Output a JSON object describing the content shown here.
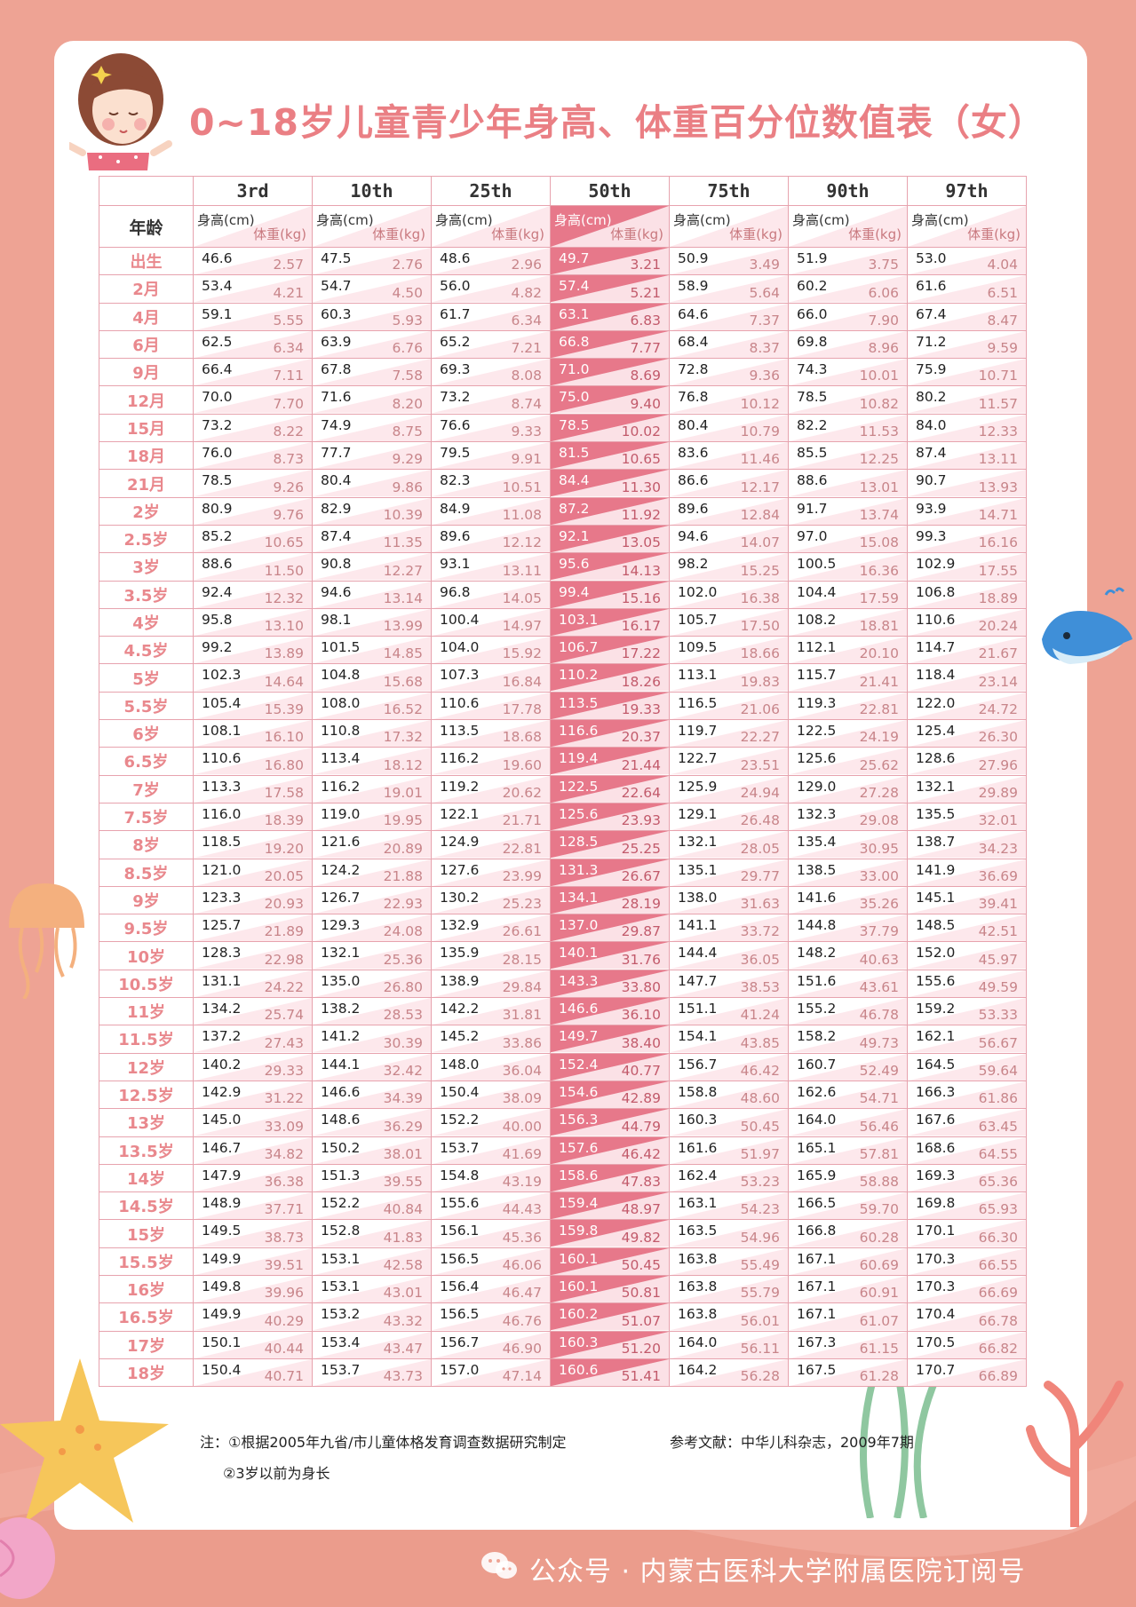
{
  "title": "0~18岁儿童青少年身高、体重百分位数值表（女）",
  "header": {
    "age_label": "年龄",
    "height_unit": "身高(cm)",
    "weight_unit": "体重(kg)",
    "percentiles": [
      "3rd",
      "10th",
      "25th",
      "50th",
      "75th",
      "90th",
      "97th"
    ],
    "highlight_index": 3
  },
  "rows": [
    {
      "age": "出生",
      "h": [
        "46.6",
        "47.5",
        "48.6",
        "49.7",
        "50.9",
        "51.9",
        "53.0"
      ],
      "w": [
        "2.57",
        "2.76",
        "2.96",
        "3.21",
        "3.49",
        "3.75",
        "4.04"
      ]
    },
    {
      "age": "2月",
      "h": [
        "53.4",
        "54.7",
        "56.0",
        "57.4",
        "58.9",
        "60.2",
        "61.6"
      ],
      "w": [
        "4.21",
        "4.50",
        "4.82",
        "5.21",
        "5.64",
        "6.06",
        "6.51"
      ]
    },
    {
      "age": "4月",
      "h": [
        "59.1",
        "60.3",
        "61.7",
        "63.1",
        "64.6",
        "66.0",
        "67.4"
      ],
      "w": [
        "5.55",
        "5.93",
        "6.34",
        "6.83",
        "7.37",
        "7.90",
        "8.47"
      ]
    },
    {
      "age": "6月",
      "h": [
        "62.5",
        "63.9",
        "65.2",
        "66.8",
        "68.4",
        "69.8",
        "71.2"
      ],
      "w": [
        "6.34",
        "6.76",
        "7.21",
        "7.77",
        "8.37",
        "8.96",
        "9.59"
      ]
    },
    {
      "age": "9月",
      "h": [
        "66.4",
        "67.8",
        "69.3",
        "71.0",
        "72.8",
        "74.3",
        "75.9"
      ],
      "w": [
        "7.11",
        "7.58",
        "8.08",
        "8.69",
        "9.36",
        "10.01",
        "10.71"
      ]
    },
    {
      "age": "12月",
      "h": [
        "70.0",
        "71.6",
        "73.2",
        "75.0",
        "76.8",
        "78.5",
        "80.2"
      ],
      "w": [
        "7.70",
        "8.20",
        "8.74",
        "9.40",
        "10.12",
        "10.82",
        "11.57"
      ]
    },
    {
      "age": "15月",
      "h": [
        "73.2",
        "74.9",
        "76.6",
        "78.5",
        "80.4",
        "82.2",
        "84.0"
      ],
      "w": [
        "8.22",
        "8.75",
        "9.33",
        "10.02",
        "10.79",
        "11.53",
        "12.33"
      ]
    },
    {
      "age": "18月",
      "h": [
        "76.0",
        "77.7",
        "79.5",
        "81.5",
        "83.6",
        "85.5",
        "87.4"
      ],
      "w": [
        "8.73",
        "9.29",
        "9.91",
        "10.65",
        "11.46",
        "12.25",
        "13.11"
      ]
    },
    {
      "age": "21月",
      "h": [
        "78.5",
        "80.4",
        "82.3",
        "84.4",
        "86.6",
        "88.6",
        "90.7"
      ],
      "w": [
        "9.26",
        "9.86",
        "10.51",
        "11.30",
        "12.17",
        "13.01",
        "13.93"
      ]
    },
    {
      "age": "2岁",
      "h": [
        "80.9",
        "82.9",
        "84.9",
        "87.2",
        "89.6",
        "91.7",
        "93.9"
      ],
      "w": [
        "9.76",
        "10.39",
        "11.08",
        "11.92",
        "12.84",
        "13.74",
        "14.71"
      ]
    },
    {
      "age": "2.5岁",
      "h": [
        "85.2",
        "87.4",
        "89.6",
        "92.1",
        "94.6",
        "97.0",
        "99.3"
      ],
      "w": [
        "10.65",
        "11.35",
        "12.12",
        "13.05",
        "14.07",
        "15.08",
        "16.16"
      ]
    },
    {
      "age": "3岁",
      "h": [
        "88.6",
        "90.8",
        "93.1",
        "95.6",
        "98.2",
        "100.5",
        "102.9"
      ],
      "w": [
        "11.50",
        "12.27",
        "13.11",
        "14.13",
        "15.25",
        "16.36",
        "17.55"
      ]
    },
    {
      "age": "3.5岁",
      "h": [
        "92.4",
        "94.6",
        "96.8",
        "99.4",
        "102.0",
        "104.4",
        "106.8"
      ],
      "w": [
        "12.32",
        "13.14",
        "14.05",
        "15.16",
        "16.38",
        "17.59",
        "18.89"
      ]
    },
    {
      "age": "4岁",
      "h": [
        "95.8",
        "98.1",
        "100.4",
        "103.1",
        "105.7",
        "108.2",
        "110.6"
      ],
      "w": [
        "13.10",
        "13.99",
        "14.97",
        "16.17",
        "17.50",
        "18.81",
        "20.24"
      ]
    },
    {
      "age": "4.5岁",
      "h": [
        "99.2",
        "101.5",
        "104.0",
        "106.7",
        "109.5",
        "112.1",
        "114.7"
      ],
      "w": [
        "13.89",
        "14.85",
        "15.92",
        "17.22",
        "18.66",
        "20.10",
        "21.67"
      ]
    },
    {
      "age": "5岁",
      "h": [
        "102.3",
        "104.8",
        "107.3",
        "110.2",
        "113.1",
        "115.7",
        "118.4"
      ],
      "w": [
        "14.64",
        "15.68",
        "16.84",
        "18.26",
        "19.83",
        "21.41",
        "23.14"
      ]
    },
    {
      "age": "5.5岁",
      "h": [
        "105.4",
        "108.0",
        "110.6",
        "113.5",
        "116.5",
        "119.3",
        "122.0"
      ],
      "w": [
        "15.39",
        "16.52",
        "17.78",
        "19.33",
        "21.06",
        "22.81",
        "24.72"
      ]
    },
    {
      "age": "6岁",
      "h": [
        "108.1",
        "110.8",
        "113.5",
        "116.6",
        "119.7",
        "122.5",
        "125.4"
      ],
      "w": [
        "16.10",
        "17.32",
        "18.68",
        "20.37",
        "22.27",
        "24.19",
        "26.30"
      ]
    },
    {
      "age": "6.5岁",
      "h": [
        "110.6",
        "113.4",
        "116.2",
        "119.4",
        "122.7",
        "125.6",
        "128.6"
      ],
      "w": [
        "16.80",
        "18.12",
        "19.60",
        "21.44",
        "23.51",
        "25.62",
        "27.96"
      ]
    },
    {
      "age": "7岁",
      "h": [
        "113.3",
        "116.2",
        "119.2",
        "122.5",
        "125.9",
        "129.0",
        "132.1"
      ],
      "w": [
        "17.58",
        "19.01",
        "20.62",
        "22.64",
        "24.94",
        "27.28",
        "29.89"
      ]
    },
    {
      "age": "7.5岁",
      "h": [
        "116.0",
        "119.0",
        "122.1",
        "125.6",
        "129.1",
        "132.3",
        "135.5"
      ],
      "w": [
        "18.39",
        "19.95",
        "21.71",
        "23.93",
        "26.48",
        "29.08",
        "32.01"
      ]
    },
    {
      "age": "8岁",
      "h": [
        "118.5",
        "121.6",
        "124.9",
        "128.5",
        "132.1",
        "135.4",
        "138.7"
      ],
      "w": [
        "19.20",
        "20.89",
        "22.81",
        "25.25",
        "28.05",
        "30.95",
        "34.23"
      ]
    },
    {
      "age": "8.5岁",
      "h": [
        "121.0",
        "124.2",
        "127.6",
        "131.3",
        "135.1",
        "138.5",
        "141.9"
      ],
      "w": [
        "20.05",
        "21.88",
        "23.99",
        "26.67",
        "29.77",
        "33.00",
        "36.69"
      ]
    },
    {
      "age": "9岁",
      "h": [
        "123.3",
        "126.7",
        "130.2",
        "134.1",
        "138.0",
        "141.6",
        "145.1"
      ],
      "w": [
        "20.93",
        "22.93",
        "25.23",
        "28.19",
        "31.63",
        "35.26",
        "39.41"
      ]
    },
    {
      "age": "9.5岁",
      "h": [
        "125.7",
        "129.3",
        "132.9",
        "137.0",
        "141.1",
        "144.8",
        "148.5"
      ],
      "w": [
        "21.89",
        "24.08",
        "26.61",
        "29.87",
        "33.72",
        "37.79",
        "42.51"
      ]
    },
    {
      "age": "10岁",
      "h": [
        "128.3",
        "132.1",
        "135.9",
        "140.1",
        "144.4",
        "148.2",
        "152.0"
      ],
      "w": [
        "22.98",
        "25.36",
        "28.15",
        "31.76",
        "36.05",
        "40.63",
        "45.97"
      ]
    },
    {
      "age": "10.5岁",
      "h": [
        "131.1",
        "135.0",
        "138.9",
        "143.3",
        "147.7",
        "151.6",
        "155.6"
      ],
      "w": [
        "24.22",
        "26.80",
        "29.84",
        "33.80",
        "38.53",
        "43.61",
        "49.59"
      ]
    },
    {
      "age": "11岁",
      "h": [
        "134.2",
        "138.2",
        "142.2",
        "146.6",
        "151.1",
        "155.2",
        "159.2"
      ],
      "w": [
        "25.74",
        "28.53",
        "31.81",
        "36.10",
        "41.24",
        "46.78",
        "53.33"
      ]
    },
    {
      "age": "11.5岁",
      "h": [
        "137.2",
        "141.2",
        "145.2",
        "149.7",
        "154.1",
        "158.2",
        "162.1"
      ],
      "w": [
        "27.43",
        "30.39",
        "33.86",
        "38.40",
        "43.85",
        "49.73",
        "56.67"
      ]
    },
    {
      "age": "12岁",
      "h": [
        "140.2",
        "144.1",
        "148.0",
        "152.4",
        "156.7",
        "160.7",
        "164.5"
      ],
      "w": [
        "29.33",
        "32.42",
        "36.04",
        "40.77",
        "46.42",
        "52.49",
        "59.64"
      ]
    },
    {
      "age": "12.5岁",
      "h": [
        "142.9",
        "146.6",
        "150.4",
        "154.6",
        "158.8",
        "162.6",
        "166.3"
      ],
      "w": [
        "31.22",
        "34.39",
        "38.09",
        "42.89",
        "48.60",
        "54.71",
        "61.86"
      ]
    },
    {
      "age": "13岁",
      "h": [
        "145.0",
        "148.6",
        "152.2",
        "156.3",
        "160.3",
        "164.0",
        "167.6"
      ],
      "w": [
        "33.09",
        "36.29",
        "40.00",
        "44.79",
        "50.45",
        "56.46",
        "63.45"
      ]
    },
    {
      "age": "13.5岁",
      "h": [
        "146.7",
        "150.2",
        "153.7",
        "157.6",
        "161.6",
        "165.1",
        "168.6"
      ],
      "w": [
        "34.82",
        "38.01",
        "41.69",
        "46.42",
        "51.97",
        "57.81",
        "64.55"
      ]
    },
    {
      "age": "14岁",
      "h": [
        "147.9",
        "151.3",
        "154.8",
        "158.6",
        "162.4",
        "165.9",
        "169.3"
      ],
      "w": [
        "36.38",
        "39.55",
        "43.19",
        "47.83",
        "53.23",
        "58.88",
        "65.36"
      ]
    },
    {
      "age": "14.5岁",
      "h": [
        "148.9",
        "152.2",
        "155.6",
        "159.4",
        "163.1",
        "166.5",
        "169.8"
      ],
      "w": [
        "37.71",
        "40.84",
        "44.43",
        "48.97",
        "54.23",
        "59.70",
        "65.93"
      ]
    },
    {
      "age": "15岁",
      "h": [
        "149.5",
        "152.8",
        "156.1",
        "159.8",
        "163.5",
        "166.8",
        "170.1"
      ],
      "w": [
        "38.73",
        "41.83",
        "45.36",
        "49.82",
        "54.96",
        "60.28",
        "66.30"
      ]
    },
    {
      "age": "15.5岁",
      "h": [
        "149.9",
        "153.1",
        "156.5",
        "160.1",
        "163.8",
        "167.1",
        "170.3"
      ],
      "w": [
        "39.51",
        "42.58",
        "46.06",
        "50.45",
        "55.49",
        "60.69",
        "66.55"
      ]
    },
    {
      "age": "16岁",
      "h": [
        "149.8",
        "153.1",
        "156.4",
        "160.1",
        "163.8",
        "167.1",
        "170.3"
      ],
      "w": [
        "39.96",
        "43.01",
        "46.47",
        "50.81",
        "55.79",
        "60.91",
        "66.69"
      ]
    },
    {
      "age": "16.5岁",
      "h": [
        "149.9",
        "153.2",
        "156.5",
        "160.2",
        "163.8",
        "167.1",
        "170.4"
      ],
      "w": [
        "40.29",
        "43.32",
        "46.76",
        "51.07",
        "56.01",
        "61.07",
        "66.78"
      ]
    },
    {
      "age": "17岁",
      "h": [
        "150.1",
        "153.4",
        "156.7",
        "160.3",
        "164.0",
        "167.3",
        "170.5"
      ],
      "w": [
        "40.44",
        "43.47",
        "46.90",
        "51.20",
        "56.11",
        "61.15",
        "66.82"
      ]
    },
    {
      "age": "18岁",
      "h": [
        "150.4",
        "153.7",
        "157.0",
        "160.6",
        "164.2",
        "167.5",
        "170.7"
      ],
      "w": [
        "40.71",
        "43.73",
        "47.14",
        "51.41",
        "56.28",
        "61.28",
        "66.89"
      ]
    }
  ],
  "notes": {
    "note1": "注：①根据2005年九省/市儿童体格发育调查数据研究制定",
    "note2": "②3岁以前为身长",
    "reference": "参考文献：中华儿科杂志，2009年7期"
  },
  "footer": "公众号 · 内蒙古医科大学附属医院订阅号",
  "colors": {
    "background": "#eea394",
    "title": "#ea7f84",
    "highlight": "#e7788a",
    "grid": "#e7a3ae",
    "age_text": "#e9888d"
  }
}
